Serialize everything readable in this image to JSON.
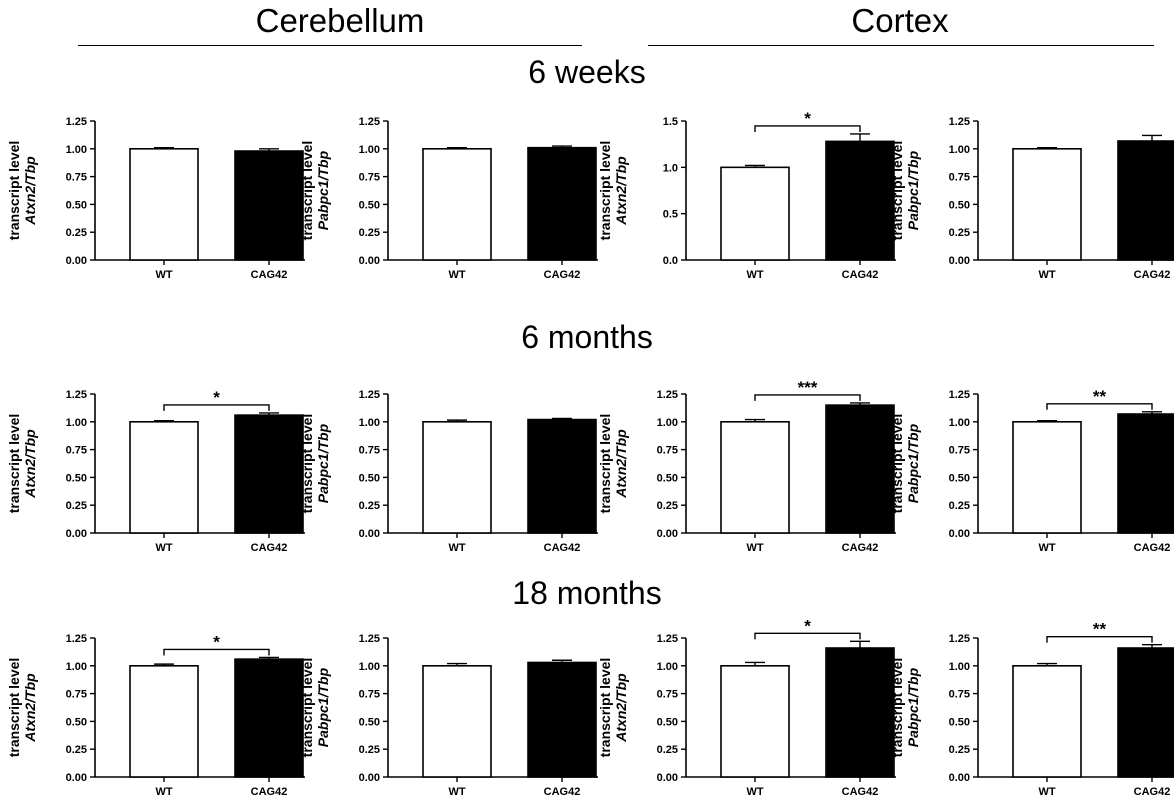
{
  "headers": {
    "regions": [
      "Cerebellum",
      "Cortex"
    ],
    "timepoints": [
      "6 weeks",
      "6 months",
      "18 months"
    ]
  },
  "colors": {
    "wt": "#ffffff",
    "cag42": "#000000",
    "axis": "#000000"
  },
  "chart_data": [
    {
      "type": "bar",
      "region": "Cerebellum",
      "timepoint": "6 weeks",
      "categories": [
        "WT",
        "CAG42"
      ],
      "values": [
        1.0,
        0.98
      ],
      "errors": [
        0.01,
        0.02
      ],
      "ylabel": "transcript level",
      "ylabel_gene": "Atxn2/Tbp",
      "ylim": [
        0,
        1.25
      ],
      "ticks": [
        "0.00",
        "0.25",
        "0.50",
        "0.75",
        "1.00",
        "1.25"
      ],
      "significance": ""
    },
    {
      "type": "bar",
      "region": "Cerebellum",
      "timepoint": "6 weeks",
      "categories": [
        "WT",
        "CAG42"
      ],
      "values": [
        1.0,
        1.01
      ],
      "errors": [
        0.01,
        0.015
      ],
      "ylabel": "transcript level",
      "ylabel_gene": "Pabpc1/Tbp",
      "ylim": [
        0,
        1.25
      ],
      "ticks": [
        "0.00",
        "0.25",
        "0.50",
        "0.75",
        "1.00",
        "1.25"
      ],
      "significance": ""
    },
    {
      "type": "bar",
      "region": "Cortex",
      "timepoint": "6 weeks",
      "categories": [
        "WT",
        "CAG42"
      ],
      "values": [
        1.0,
        1.28
      ],
      "errors": [
        0.02,
        0.08
      ],
      "ylabel": "transcript level",
      "ylabel_gene": "Atxn2/Tbp",
      "ylim": [
        0,
        1.5
      ],
      "ticks": [
        "0.0",
        "0.5",
        "1.0",
        "1.5"
      ],
      "significance": "*"
    },
    {
      "type": "bar",
      "region": "Cortex",
      "timepoint": "6 weeks",
      "categories": [
        "WT",
        "CAG42"
      ],
      "values": [
        1.0,
        1.07
      ],
      "errors": [
        0.01,
        0.05
      ],
      "ylabel": "transcript level",
      "ylabel_gene": "Pabpc1/Tbp",
      "ylim": [
        0,
        1.25
      ],
      "ticks": [
        "0.00",
        "0.25",
        "0.50",
        "0.75",
        "1.00",
        "1.25"
      ],
      "significance": ""
    },
    {
      "type": "bar",
      "region": "Cerebellum",
      "timepoint": "6 months",
      "categories": [
        "WT",
        "CAG42"
      ],
      "values": [
        1.0,
        1.06
      ],
      "errors": [
        0.01,
        0.02
      ],
      "ylabel": "transcript level",
      "ylabel_gene": "Atxn2/Tbp",
      "ylim": [
        0,
        1.25
      ],
      "ticks": [
        "0.00",
        "0.25",
        "0.50",
        "0.75",
        "1.00",
        "1.25"
      ],
      "significance": "*"
    },
    {
      "type": "bar",
      "region": "Cerebellum",
      "timepoint": "6 months",
      "categories": [
        "WT",
        "CAG42"
      ],
      "values": [
        1.0,
        1.02
      ],
      "errors": [
        0.015,
        0.01
      ],
      "ylabel": "transcript level",
      "ylabel_gene": "Pabpc1/Tbp",
      "ylim": [
        0,
        1.25
      ],
      "ticks": [
        "0.00",
        "0.25",
        "0.50",
        "0.75",
        "1.00",
        "1.25"
      ],
      "significance": ""
    },
    {
      "type": "bar",
      "region": "Cortex",
      "timepoint": "6 months",
      "categories": [
        "WT",
        "CAG42"
      ],
      "values": [
        1.0,
        1.15
      ],
      "errors": [
        0.02,
        0.02
      ],
      "ylabel": "transcript level",
      "ylabel_gene": "Atxn2/Tbp",
      "ylim": [
        0,
        1.25
      ],
      "ticks": [
        "0.00",
        "0.25",
        "0.50",
        "0.75",
        "1.00",
        "1.25"
      ],
      "significance": "***"
    },
    {
      "type": "bar",
      "region": "Cortex",
      "timepoint": "6 months",
      "categories": [
        "WT",
        "CAG42"
      ],
      "values": [
        1.0,
        1.07
      ],
      "errors": [
        0.01,
        0.02
      ],
      "ylabel": "transcript level",
      "ylabel_gene": "Pabpc1/Tbp",
      "ylim": [
        0,
        1.25
      ],
      "ticks": [
        "0.00",
        "0.25",
        "0.50",
        "0.75",
        "1.00",
        "1.25"
      ],
      "significance": "**"
    },
    {
      "type": "bar",
      "region": "Cerebellum",
      "timepoint": "18 months",
      "categories": [
        "WT",
        "CAG42"
      ],
      "values": [
        1.0,
        1.06
      ],
      "errors": [
        0.015,
        0.015
      ],
      "ylabel": "transcript level",
      "ylabel_gene": "Atxn2/Tbp",
      "ylim": [
        0,
        1.25
      ],
      "ticks": [
        "0.00",
        "0.25",
        "0.50",
        "0.75",
        "1.00",
        "1.25"
      ],
      "significance": "*"
    },
    {
      "type": "bar",
      "region": "Cerebellum",
      "timepoint": "18 months",
      "categories": [
        "WT",
        "CAG42"
      ],
      "values": [
        1.0,
        1.03
      ],
      "errors": [
        0.02,
        0.02
      ],
      "ylabel": "transcript level",
      "ylabel_gene": "Pabpc1/Tbp",
      "ylim": [
        0,
        1.25
      ],
      "ticks": [
        "0.00",
        "0.25",
        "0.50",
        "0.75",
        "1.00",
        "1.25"
      ],
      "significance": ""
    },
    {
      "type": "bar",
      "region": "Cortex",
      "timepoint": "18 months",
      "categories": [
        "WT",
        "CAG42"
      ],
      "values": [
        1.0,
        1.16
      ],
      "errors": [
        0.03,
        0.06
      ],
      "ylabel": "transcript level",
      "ylabel_gene": "Atxn2/Tbp",
      "ylim": [
        0,
        1.25
      ],
      "ticks": [
        "0.00",
        "0.25",
        "0.50",
        "0.75",
        "1.00",
        "1.25"
      ],
      "significance": "*"
    },
    {
      "type": "bar",
      "region": "Cortex",
      "timepoint": "18 months",
      "categories": [
        "WT",
        "CAG42"
      ],
      "values": [
        1.0,
        1.16
      ],
      "errors": [
        0.02,
        0.03
      ],
      "ylabel": "transcript level",
      "ylabel_gene": "Pabpc1/Tbp",
      "ylim": [
        0,
        1.25
      ],
      "ticks": [
        "0.00",
        "0.25",
        "0.50",
        "0.75",
        "1.00",
        "1.25"
      ],
      "significance": "**"
    }
  ]
}
